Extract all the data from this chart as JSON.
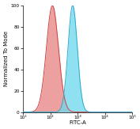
{
  "title": "",
  "xlabel": "FITC-A",
  "ylabel": "Normalized To Mode",
  "xlim_log": [
    10,
    100000
  ],
  "ylim": [
    0,
    100
  ],
  "yticks": [
    0,
    20,
    40,
    60,
    80,
    100
  ],
  "xtick_values": [
    10,
    100,
    1000,
    10000,
    100000
  ],
  "xtick_labels": [
    "10¹",
    "10²",
    "10³",
    "10⁴",
    "10⁵"
  ],
  "red_peak_log": 2.08,
  "red_sigma": 0.22,
  "blue_peak_log": 2.82,
  "blue_sigma": 0.17,
  "red_fill_color": "#E88080",
  "red_edge_color": "#CC4444",
  "blue_fill_color": "#70D8EE",
  "blue_edge_color": "#2AAACE",
  "red_alpha": 0.75,
  "blue_alpha": 0.78,
  "background_color": "#ffffff",
  "fig_width": 1.77,
  "fig_height": 1.63,
  "dpi": 100,
  "edge_lw": 0.7,
  "n_curve": 800
}
